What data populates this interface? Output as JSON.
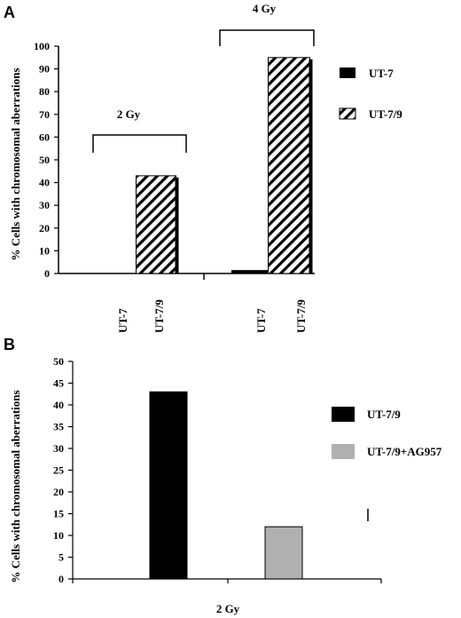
{
  "chart_data": [
    {
      "panel": "A",
      "type": "bar",
      "ylabel": "% Cells with chromosomal aberrations",
      "ylim": [
        0,
        100
      ],
      "yticks": [
        0,
        10,
        20,
        30,
        40,
        50,
        60,
        70,
        80,
        90,
        100
      ],
      "groups": [
        {
          "label": "2 Gy",
          "categories": [
            "UT-7",
            "UT-7/9"
          ]
        },
        {
          "label": "4 Gy",
          "categories": [
            "UT-7",
            "UT-7/9"
          ]
        }
      ],
      "series": [
        {
          "name": "UT-7",
          "values": [
            0,
            1.5
          ]
        },
        {
          "name": "UT-7/9",
          "values": [
            43,
            95
          ]
        }
      ],
      "legend_position": "right",
      "grid": false
    },
    {
      "panel": "B",
      "type": "bar",
      "ylabel": "% Cells with chromosomal aberrations",
      "xlabel": "2 Gy",
      "ylim": [
        0,
        50
      ],
      "yticks": [
        0,
        5,
        10,
        15,
        20,
        25,
        30,
        35,
        40,
        45,
        50
      ],
      "series": [
        {
          "name": "UT-7/9",
          "values": [
            43
          ],
          "color": "#000000"
        },
        {
          "name": "UT-7/9+AG957",
          "values": [
            12
          ],
          "color": "#b0b0b0"
        }
      ],
      "legend_position": "right",
      "grid": false
    }
  ]
}
